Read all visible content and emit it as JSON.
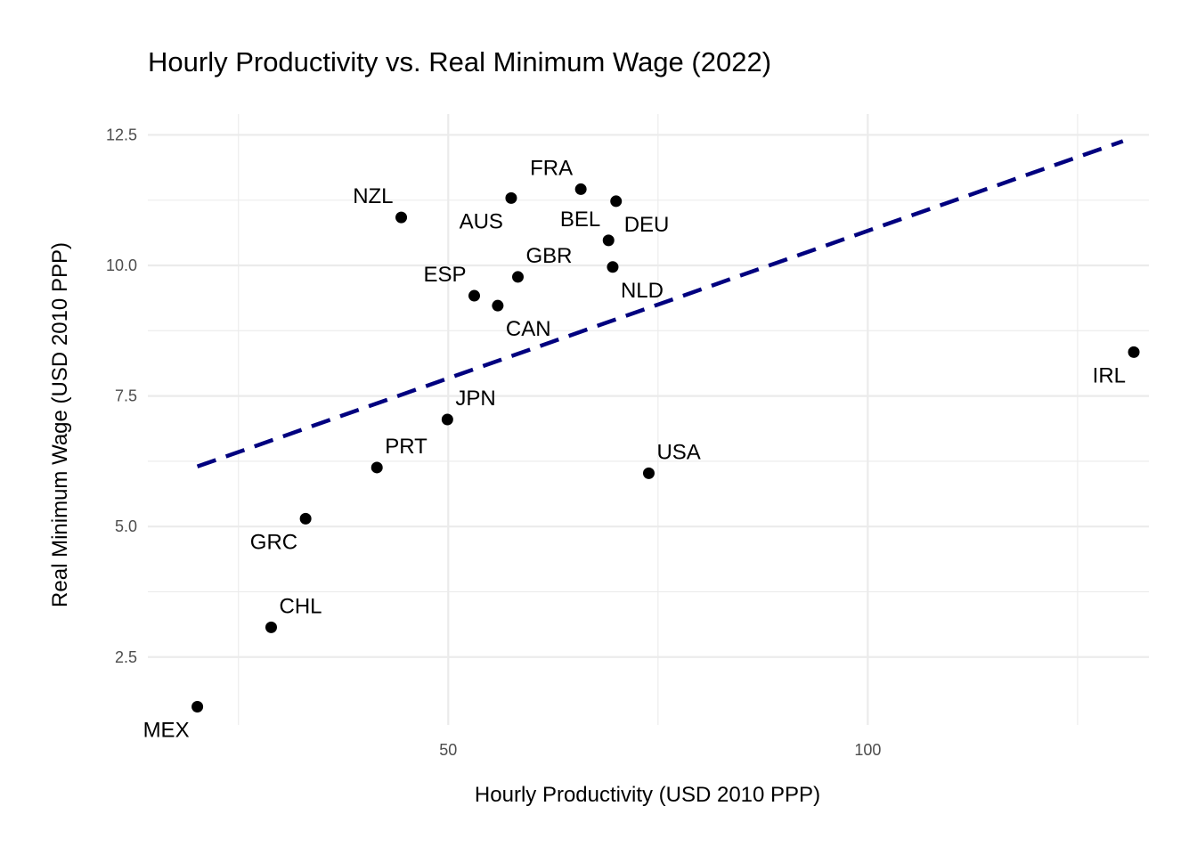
{
  "chart_data": {
    "type": "scatter",
    "title": "Hourly Productivity vs. Real Minimum Wage (2022)",
    "xlabel": "Hourly Productivity (USD 2010 PPP)",
    "ylabel": "Real Minimum Wage (USD 2010 PPP)",
    "xlim": [
      14.2,
      133.5
    ],
    "ylim": [
      1.2,
      12.9
    ],
    "x_major_ticks": [
      50,
      100
    ],
    "x_minor_ticks": [
      25,
      75,
      125
    ],
    "y_major_ticks": [
      2.5,
      5.0,
      7.5,
      10.0,
      12.5
    ],
    "y_minor_ticks": [
      3.75,
      6.25,
      8.75,
      11.25
    ],
    "x_tick_labels": [
      "50",
      "100"
    ],
    "y_tick_labels": [
      "2.5",
      "5.0",
      "7.5",
      "10.0",
      "12.5"
    ],
    "grid": true,
    "points": [
      {
        "label": "MEX",
        "x": 20.1,
        "y": 1.55,
        "label_pos": "below-left"
      },
      {
        "label": "CHL",
        "x": 28.9,
        "y": 3.07,
        "label_pos": "above-right"
      },
      {
        "label": "GRC",
        "x": 33.0,
        "y": 5.15,
        "label_pos": "below-left"
      },
      {
        "label": "PRT",
        "x": 41.5,
        "y": 6.13,
        "label_pos": "above-right"
      },
      {
        "label": "JPN",
        "x": 49.9,
        "y": 7.05,
        "label_pos": "above-right"
      },
      {
        "label": "NZL",
        "x": 44.4,
        "y": 10.92,
        "label_pos": "above-left"
      },
      {
        "label": "ESP",
        "x": 53.1,
        "y": 9.42,
        "label_pos": "above-left"
      },
      {
        "label": "CAN",
        "x": 55.9,
        "y": 9.23,
        "label_pos": "below-right"
      },
      {
        "label": "AUS",
        "x": 57.5,
        "y": 11.29,
        "label_pos": "below-left"
      },
      {
        "label": "GBR",
        "x": 58.3,
        "y": 9.78,
        "label_pos": "above-right"
      },
      {
        "label": "FRA",
        "x": 65.8,
        "y": 11.46,
        "label_pos": "above-left"
      },
      {
        "label": "BEL",
        "x": 69.1,
        "y": 10.48,
        "label_pos": "above-left"
      },
      {
        "label": "DEU",
        "x": 70.0,
        "y": 11.23,
        "label_pos": "below-right"
      },
      {
        "label": "NLD",
        "x": 69.6,
        "y": 9.97,
        "label_pos": "below-right"
      },
      {
        "label": "USA",
        "x": 73.9,
        "y": 6.02,
        "label_pos": "above-right"
      },
      {
        "label": "IRL",
        "x": 131.7,
        "y": 8.34,
        "label_pos": "below-left"
      }
    ],
    "trend_line": {
      "x1": 20.1,
      "y1": 6.15,
      "x2": 130.4,
      "y2": 12.38,
      "style": "dashed",
      "color": "#00007f"
    },
    "point_color": "#000000"
  }
}
